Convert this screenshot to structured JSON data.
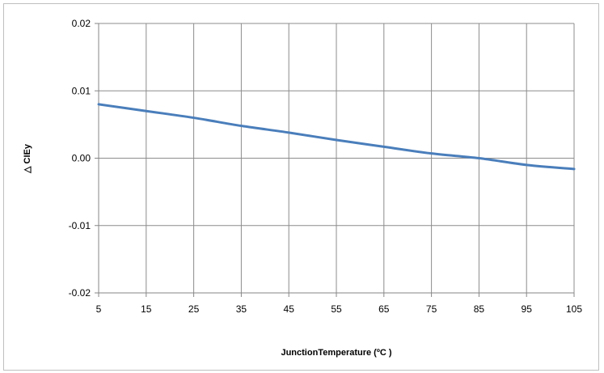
{
  "chart_data": {
    "type": "line",
    "xlabel": "JunctionTemperature (ºC )",
    "ylabel": "△ CIEy",
    "x_ticks": [
      "5",
      "15",
      "25",
      "35",
      "45",
      "55",
      "65",
      "75",
      "85",
      "95",
      "105"
    ],
    "y_ticks": [
      "0.02",
      "0.01",
      "0.00",
      "-0.01",
      "-0.02"
    ],
    "xlim": [
      5,
      105
    ],
    "ylim": [
      -0.02,
      0.02
    ],
    "grid": true,
    "series": [
      {
        "color": "#4a7ebb",
        "x": [
          5,
          15,
          25,
          35,
          45,
          55,
          65,
          75,
          85,
          95,
          105
        ],
        "y": [
          0.008,
          0.007,
          0.006,
          0.0048,
          0.0038,
          0.0027,
          0.0017,
          0.0007,
          0.0,
          -0.001,
          -0.0016
        ]
      }
    ]
  }
}
